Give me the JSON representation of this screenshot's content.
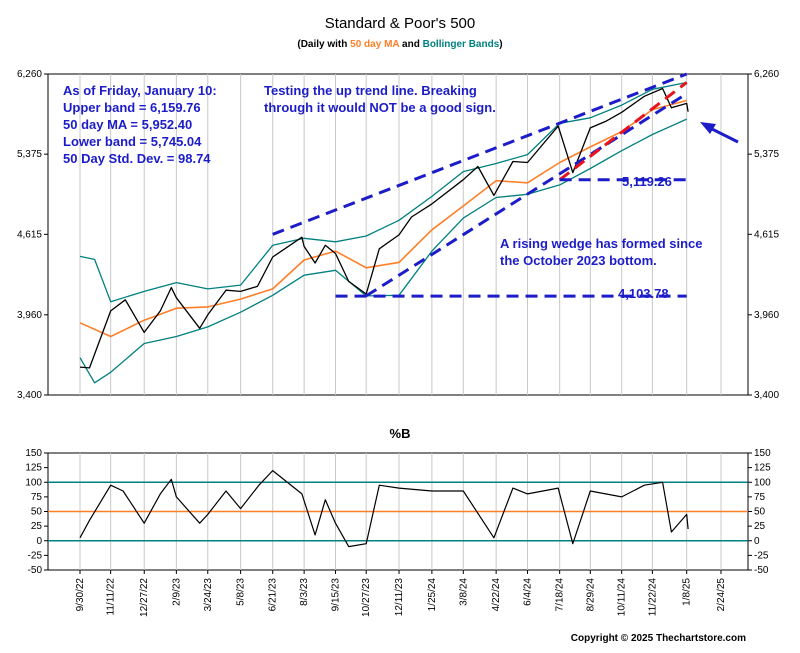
{
  "chart_data": [
    {
      "type": "line",
      "title": "Standard & Poor's 500",
      "subtitle": {
        "prefix": "(Daily with ",
        "ma_label": "50 day MA",
        "mid": " and ",
        "bb_label": "Bollinger Bands",
        "suffix": ")"
      },
      "ylim": [
        3400,
        6260
      ],
      "y_ticks": [
        "3,400",
        "3,960",
        "4,615",
        "5,375",
        "6,260"
      ],
      "x_ticks": [
        "9/30/22",
        "11/11/22",
        "12/27/22",
        "2/9/23",
        "3/24/23",
        "5/8/23",
        "6/21/23",
        "8/3/23",
        "9/15/23",
        "10/27/23",
        "12/11/23",
        "1/25/24",
        "3/8/24",
        "4/22/24",
        "6/4/24",
        "7/18/24",
        "8/29/24",
        "10/11/24",
        "11/22/24",
        "1/8/25",
        "2/24/25"
      ],
      "series": [
        {
          "name": "S&P 500",
          "x": [
            "9/30/22",
            "10/13/22",
            "11/11/22",
            "12/1/22",
            "12/27/22",
            "1/18/23",
            "2/2/23",
            "2/9/23",
            "3/13/23",
            "3/24/23",
            "4/18/23",
            "5/8/23",
            "5/31/23",
            "6/21/23",
            "7/31/23",
            "8/3/23",
            "8/18/23",
            "9/1/23",
            "9/15/23",
            "10/3/23",
            "10/27/23",
            "11/14/23",
            "12/11/23",
            "12/28/23",
            "1/25/24",
            "3/8/24",
            "3/28/24",
            "4/19/24",
            "5/15/24",
            "6/4/24",
            "7/16/24",
            "8/5/24",
            "8/29/24",
            "9/19/24",
            "10/11/24",
            "11/11/24",
            "12/6/24",
            "12/18/24",
            "1/8/25",
            "1/10/25"
          ],
          "values": [
            3585,
            3580,
            3990,
            4075,
            3830,
            3990,
            4170,
            4090,
            3860,
            3960,
            4150,
            4140,
            4180,
            4420,
            4590,
            4510,
            4370,
            4520,
            4450,
            4220,
            4120,
            4490,
            4610,
            4770,
            4890,
            5120,
            5250,
            4970,
            5300,
            5290,
            5670,
            5190,
            5650,
            5720,
            5820,
            6000,
            6090,
            5870,
            5920,
            5827
          ]
        },
        {
          "name": "50 day MA",
          "x": [
            "9/30/22",
            "11/11/22",
            "12/27/22",
            "2/9/23",
            "3/24/23",
            "5/8/23",
            "6/21/23",
            "8/3/23",
            "9/15/23",
            "10/27/23",
            "12/11/23",
            "1/25/24",
            "3/8/24",
            "4/22/24",
            "6/4/24",
            "7/18/24",
            "8/29/24",
            "10/11/24",
            "11/22/24",
            "1/8/25"
          ],
          "values": [
            3900,
            3800,
            3920,
            4010,
            4020,
            4080,
            4160,
            4395,
            4470,
            4330,
            4375,
            4655,
            4870,
            5110,
            5090,
            5290,
            5450,
            5610,
            5850,
            5952
          ]
        },
        {
          "name": "Upper band",
          "x": [
            "9/30/22",
            "10/20/22",
            "11/11/22",
            "12/27/22",
            "2/9/23",
            "3/24/23",
            "5/8/23",
            "6/21/23",
            "8/3/23",
            "9/15/23",
            "10/27/23",
            "12/11/23",
            "1/25/24",
            "3/8/24",
            "4/22/24",
            "6/4/24",
            "7/18/24",
            "8/29/24",
            "10/11/24",
            "11/22/24",
            "1/8/25"
          ],
          "values": [
            4425,
            4400,
            4060,
            4140,
            4210,
            4160,
            4190,
            4520,
            4580,
            4550,
            4600,
            4740,
            4960,
            5200,
            5280,
            5370,
            5700,
            5760,
            5900,
            6080,
            6160
          ]
        },
        {
          "name": "Lower band",
          "x": [
            "9/30/22",
            "10/20/22",
            "11/11/22",
            "12/27/22",
            "2/9/23",
            "3/24/23",
            "5/8/23",
            "6/21/23",
            "8/3/23",
            "9/15/23",
            "10/27/23",
            "12/11/23",
            "1/25/24",
            "3/8/24",
            "4/22/24",
            "6/4/24",
            "7/18/24",
            "8/29/24",
            "10/11/24",
            "11/22/24",
            "1/8/25"
          ],
          "values": [
            3650,
            3480,
            3550,
            3750,
            3800,
            3870,
            3980,
            4110,
            4270,
            4310,
            4105,
            4110,
            4470,
            4760,
            4950,
            4980,
            5070,
            5230,
            5410,
            5580,
            5745
          ]
        }
      ],
      "trend_lines": [
        {
          "name": "upper wedge line",
          "x": [
            "6/21/23",
            "1/8/25"
          ],
          "values": [
            4615,
            6260
          ]
        },
        {
          "name": "lower wedge line",
          "x": [
            "10/27/23",
            "1/8/25"
          ],
          "values": [
            4105,
            6030
          ]
        },
        {
          "name": "red trend line",
          "x": [
            "7/18/24",
            "1/8/25"
          ],
          "values": [
            5119,
            6160
          ]
        },
        {
          "name": "support 4,103.78",
          "x": [
            "9/15/23",
            "1/8/25"
          ],
          "values": [
            4103.78,
            4103.78
          ],
          "label": "4,103.78"
        },
        {
          "name": "support 5,119.26",
          "x": [
            "7/18/24",
            "1/8/25"
          ],
          "values": [
            5119.26,
            5119.26
          ],
          "label": "5,119.26"
        }
      ],
      "annotations": {
        "stats": [
          "As of Friday, January 10:",
          "Upper band = 6,159.76",
          "50 day MA = 5,952.40",
          "Lower band = 5,745.04",
          "50 Day Std. Dev. = 98.74"
        ],
        "trend_note": [
          "Testing the up trend line.  Breaking",
          "through it would NOT be a good sign."
        ],
        "wedge_note": [
          "A rising wedge has formed since",
          "the October 2023 bottom."
        ]
      },
      "colors": {
        "price": "#000000",
        "ma": "#ff7f27",
        "bands": "#008080",
        "annotation": "#1c1cc8",
        "trend_red": "#e8141c"
      }
    },
    {
      "type": "line",
      "title": "%B",
      "ylim": [
        -50,
        150
      ],
      "y_ticks": [
        "-50",
        "-25",
        "0",
        "25",
        "50",
        "75",
        "100",
        "125",
        "150"
      ],
      "reference_lines": [
        {
          "value": 100,
          "color": "#008080"
        },
        {
          "value": 50,
          "color": "#ff7f27"
        },
        {
          "value": 0,
          "color": "#008080"
        }
      ],
      "series": [
        {
          "name": "%B",
          "x": [
            "9/30/22",
            "10/13/22",
            "11/11/22",
            "11/28/22",
            "12/27/22",
            "1/18/23",
            "2/2/23",
            "2/9/23",
            "3/13/23",
            "3/24/23",
            "4/18/23",
            "5/8/23",
            "6/2/23",
            "6/21/23",
            "7/31/23",
            "8/18/23",
            "9/1/23",
            "9/15/23",
            "10/3/23",
            "10/27/23",
            "11/14/23",
            "12/11/23",
            "1/25/24",
            "3/8/24",
            "4/19/24",
            "5/15/24",
            "6/4/24",
            "7/16/24",
            "8/5/24",
            "8/29/24",
            "9/19/24",
            "10/11/24",
            "11/11/24",
            "12/6/24",
            "12/18/24",
            "1/8/25",
            "1/10/25"
          ],
          "values": [
            5,
            35,
            95,
            85,
            30,
            80,
            105,
            75,
            30,
            45,
            85,
            55,
            95,
            120,
            80,
            10,
            70,
            30,
            -10,
            -5,
            95,
            90,
            85,
            85,
            5,
            90,
            80,
            90,
            -5,
            85,
            80,
            75,
            95,
            100,
            15,
            45,
            20
          ]
        }
      ]
    }
  ],
  "copyright": "Copyright © 2025 Thechartstore.com"
}
